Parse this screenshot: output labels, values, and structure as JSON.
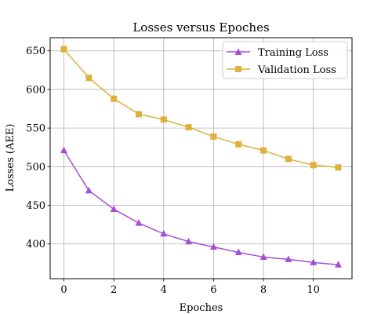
{
  "chart_data": {
    "type": "line",
    "title": "Losses versus Epoches",
    "xlabel": "Epoches",
    "ylabel": "Losses (AEE)",
    "x": [
      0,
      1,
      2,
      3,
      4,
      5,
      6,
      7,
      8,
      9,
      10,
      11
    ],
    "xlim": [
      -0.55,
      11.55
    ],
    "ylim": [
      355,
      667
    ],
    "xticks": [
      0,
      2,
      4,
      6,
      8,
      10
    ],
    "yticks": [
      400,
      450,
      500,
      550,
      600,
      650
    ],
    "grid": true,
    "legend_position": "top-right",
    "series": [
      {
        "name": "Training Loss",
        "marker": "triangle",
        "color": "#a64fd6",
        "values": [
          521,
          469,
          445,
          427,
          413,
          403,
          396,
          389,
          383,
          380,
          376,
          373
        ]
      },
      {
        "name": "Validation Loss",
        "marker": "square",
        "color": "#e0b03c",
        "values": [
          652,
          615,
          588,
          568,
          561,
          551,
          539,
          529,
          521,
          510,
          502,
          499
        ]
      }
    ]
  }
}
